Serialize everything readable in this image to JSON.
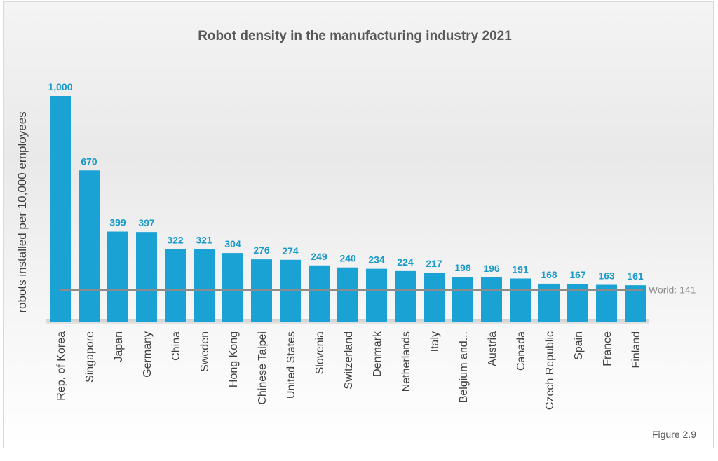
{
  "chart_data": {
    "type": "bar",
    "title": "Robot density in the manufacturing industry 2021",
    "ylabel": "robots installed per 10,000 employees",
    "xlabel": "",
    "categories": [
      "Rep. of Korea",
      "Singapore",
      "Japan",
      "Germany",
      "China",
      "Sweden",
      "Hong Kong",
      "Chinese Taipei",
      "United States",
      "Slovenia",
      "Switzerland",
      "Denmark",
      "Netherlands",
      "Italy",
      "Belgium and...",
      "Austria",
      "Canada",
      "Czech Republic",
      "Spain",
      "France",
      "Finland"
    ],
    "values": [
      1000,
      670,
      399,
      397,
      322,
      321,
      304,
      276,
      274,
      249,
      240,
      234,
      224,
      217,
      198,
      196,
      191,
      168,
      167,
      163,
      161
    ],
    "value_labels": [
      "1,000",
      "670",
      "399",
      "397",
      "322",
      "321",
      "304",
      "276",
      "274",
      "249",
      "240",
      "234",
      "224",
      "217",
      "198",
      "196",
      "191",
      "168",
      "167",
      "163",
      "161"
    ],
    "reference_line": {
      "label": "World: 141",
      "value": 141
    },
    "ylim": [
      0,
      1000
    ],
    "grid": false,
    "legend": "none",
    "bar_color": "#1aa2d4",
    "label_color": "#1a9ac9",
    "reference_color": "#8c8c8c"
  },
  "figure_caption": "Figure 2.9"
}
